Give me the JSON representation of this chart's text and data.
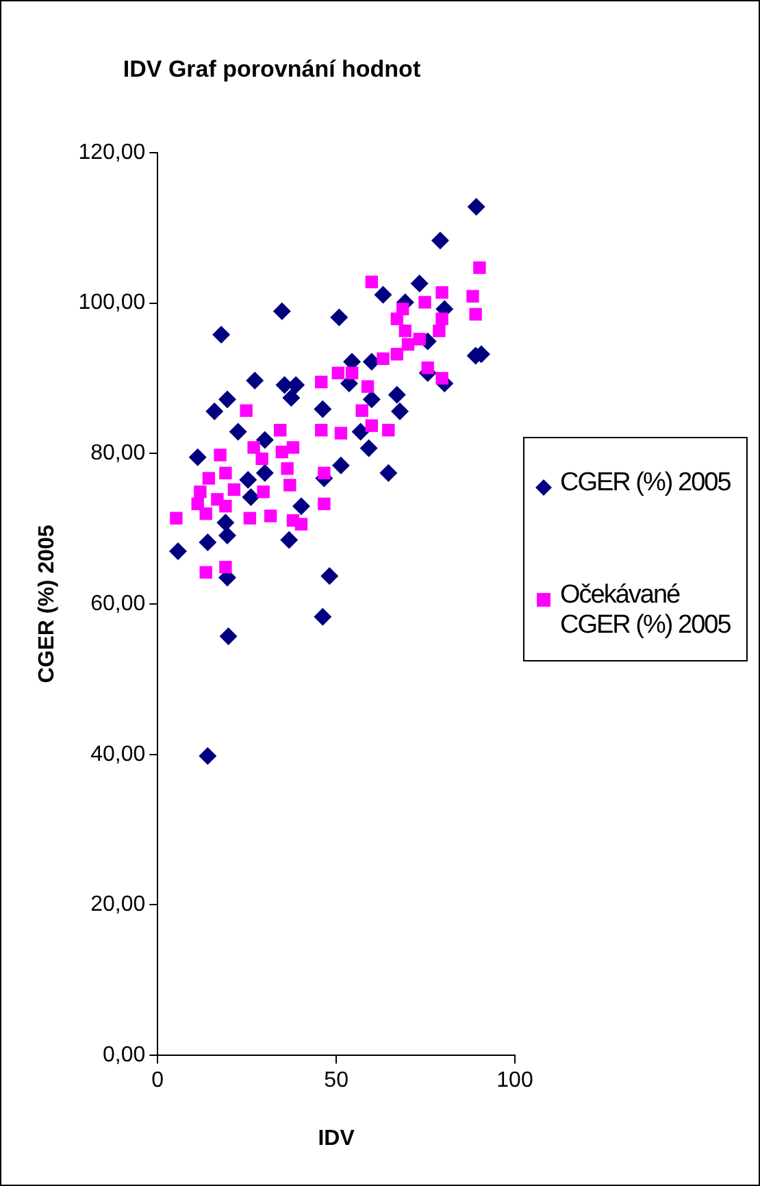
{
  "chart_data": {
    "type": "scatter",
    "title": "IDV Graf porovnání hodnot",
    "xlabel": "IDV",
    "ylabel": "CGER (%) 2005",
    "xlim": [
      0,
      100
    ],
    "xticks": [
      0,
      50,
      100
    ],
    "ylim": [
      0,
      120
    ],
    "yticks": [
      {
        "value": 0,
        "label": "0,00"
      },
      {
        "value": 20,
        "label": "20,00"
      },
      {
        "value": 40,
        "label": "40,00"
      },
      {
        "value": 60,
        "label": "60,00"
      },
      {
        "value": 80,
        "label": "80,00"
      },
      {
        "value": 100,
        "label": "100,00"
      },
      {
        "value": 120,
        "label": "120,00"
      }
    ],
    "grid": false,
    "legend": "right",
    "series": [
      {
        "name": "CGER (%) 2005",
        "color": "#000080",
        "marker": "diamond",
        "x": [
          89.2,
          79.1,
          73.3,
          63.1,
          69.3,
          80.3,
          34.8,
          50.8,
          17.8,
          75.6,
          89,
          90.6,
          54.4,
          59.9,
          27.2,
          35.5,
          38.7,
          37.4,
          53.6,
          75.6,
          80.3,
          19.5,
          15.9,
          46.2,
          67,
          67.8,
          59.9,
          22.5,
          30,
          56.8,
          59.1,
          11.2,
          51.3,
          64.6,
          30,
          25.3,
          46.6,
          26.1,
          40.2,
          19,
          19.5,
          14,
          5.7,
          36.8,
          19.5,
          48.1,
          46.2,
          19.8,
          14
        ],
        "values": [
          112.8,
          108.3,
          102.6,
          101.1,
          100.1,
          99.2,
          98.9,
          98.1,
          95.8,
          94.9,
          93.0,
          93.2,
          92.2,
          92.2,
          89.7,
          89.1,
          89.1,
          87.4,
          89.3,
          90.7,
          89.3,
          87.2,
          85.6,
          85.9,
          87.8,
          85.6,
          87.2,
          82.9,
          81.8,
          82.9,
          80.7,
          79.5,
          78.4,
          77.4,
          77.4,
          76.5,
          76.7,
          74.2,
          73.0,
          70.8,
          69.1,
          68.2,
          67.0,
          68.5,
          63.5,
          63.7,
          58.3,
          55.7,
          39.8
        ]
      },
      {
        "name": "Očekávané CGER (%) 2005",
        "color": "#ff00ff",
        "marker": "square",
        "x": [
          90.1,
          59.9,
          79.6,
          88.2,
          74.8,
          68.6,
          89,
          67,
          79.6,
          69.3,
          78.8,
          73.3,
          70.1,
          67,
          63.1,
          75.6,
          79.6,
          50.5,
          54.4,
          45.8,
          58.8,
          24.8,
          57.2,
          59.9,
          64.6,
          34.3,
          45.8,
          51.3,
          26.9,
          37.9,
          34.8,
          17.5,
          29.2,
          36.3,
          46.6,
          19,
          14.3,
          37,
          11.9,
          21.4,
          29.6,
          16.7,
          11.2,
          19,
          46.6,
          13.5,
          5.2,
          25.8,
          31.6,
          37.9,
          40.2,
          13.5,
          19
        ],
        "values": [
          104.7,
          102.8,
          101.4,
          100.9,
          100.1,
          99.2,
          98.5,
          97.9,
          97.9,
          96.3,
          96.3,
          95.2,
          94.5,
          93.2,
          92.6,
          91.4,
          90.0,
          90.7,
          90.7,
          89.5,
          88.9,
          85.7,
          85.7,
          83.7,
          83.1,
          83.1,
          83.1,
          82.7,
          80.8,
          80.8,
          80.2,
          79.8,
          79.3,
          78.0,
          77.4,
          77.4,
          76.7,
          75.8,
          74.9,
          75.2,
          74.9,
          73.9,
          73.3,
          73.0,
          73.3,
          72.0,
          71.4,
          71.4,
          71.7,
          71.1,
          70.6,
          64.2,
          64.9
        ]
      }
    ]
  }
}
